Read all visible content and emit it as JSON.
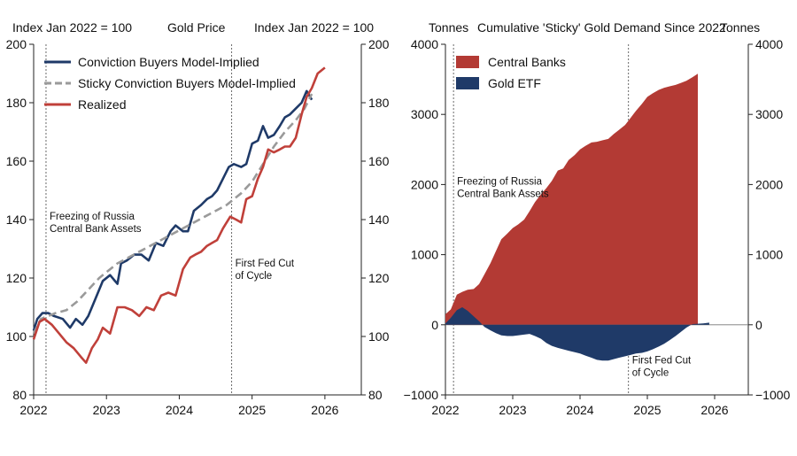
{
  "chart_data": [
    {
      "type": "line",
      "title": "Gold Price",
      "ylabel_left": "Index Jan 2022 = 100",
      "ylabel_right": "Index Jan 2022 = 100",
      "ylim": [
        80,
        200
      ],
      "yticks": [
        "80",
        "100",
        "120",
        "140",
        "160",
        "180",
        "200"
      ],
      "xlim": [
        2022,
        2026.5
      ],
      "xticks": [
        "2022",
        "2023",
        "2024",
        "2025",
        "2026"
      ],
      "legend_position": "top-left",
      "series": [
        {
          "name": "Conviction Buyers Model-Implied",
          "color": "#1f3a68",
          "style": "solid",
          "x": [
            2022.0,
            2022.05,
            2022.12,
            2022.2,
            2022.28,
            2022.4,
            2022.5,
            2022.58,
            2022.67,
            2022.75,
            2022.85,
            2022.95,
            2023.05,
            2023.15,
            2023.2,
            2023.28,
            2023.38,
            2023.48,
            2023.58,
            2023.68,
            2023.78,
            2023.88,
            2023.95,
            2024.05,
            2024.12,
            2024.2,
            2024.3,
            2024.38,
            2024.45,
            2024.52,
            2024.6,
            2024.68,
            2024.75,
            2024.85,
            2024.92,
            2025.0,
            2025.08,
            2025.15,
            2025.22,
            2025.3,
            2025.38,
            2025.45,
            2025.52,
            2025.6,
            2025.68,
            2025.75,
            2025.82
          ],
          "values": [
            102,
            106,
            108,
            108,
            107,
            106,
            103,
            106,
            104,
            107,
            113,
            119,
            121,
            118,
            125,
            126,
            128,
            128,
            126,
            132,
            131,
            136,
            138,
            136,
            136,
            143,
            145,
            147,
            148,
            150,
            154,
            158,
            159,
            158,
            159,
            166,
            167,
            172,
            168,
            169,
            172,
            175,
            176,
            178,
            180,
            184,
            181
          ]
        },
        {
          "name": "Sticky Conviction Buyers Model-Implied",
          "color": "#9a9a9a",
          "style": "dashed",
          "x": [
            2022.0,
            2022.1,
            2022.2,
            2022.3,
            2022.45,
            2022.6,
            2022.75,
            2022.9,
            2023.0,
            2023.15,
            2023.3,
            2023.45,
            2023.6,
            2023.75,
            2023.9,
            2024.05,
            2024.2,
            2024.35,
            2024.5,
            2024.65,
            2024.75,
            2024.85,
            2025.0,
            2025.15,
            2025.3,
            2025.45,
            2025.6,
            2025.72,
            2025.82
          ],
          "values": [
            101,
            106,
            107,
            108,
            109,
            112,
            116,
            120,
            122,
            125,
            127,
            129,
            131,
            133,
            135,
            137,
            139,
            141,
            143,
            145,
            147,
            149,
            153,
            159,
            165,
            170,
            174,
            178,
            183
          ]
        },
        {
          "name": "Realized",
          "color": "#c0403a",
          "style": "solid",
          "x": [
            2022.0,
            2022.08,
            2022.15,
            2022.25,
            2022.35,
            2022.45,
            2022.55,
            2022.65,
            2022.72,
            2022.8,
            2022.88,
            2022.95,
            2023.05,
            2023.15,
            2023.25,
            2023.35,
            2023.45,
            2023.55,
            2023.65,
            2023.75,
            2023.85,
            2023.95,
            2024.05,
            2024.15,
            2024.22,
            2024.3,
            2024.38,
            2024.45,
            2024.52,
            2024.6,
            2024.7,
            2024.78,
            2024.85,
            2024.92,
            2025.0,
            2025.08,
            2025.15,
            2025.22,
            2025.3,
            2025.38,
            2025.45,
            2025.52,
            2025.6,
            2025.68,
            2025.75,
            2025.82,
            2025.9,
            2026.0
          ],
          "values": [
            99,
            105,
            106,
            104,
            101,
            98,
            96,
            93,
            91,
            96,
            99,
            103,
            101,
            110,
            110,
            109,
            107,
            110,
            109,
            114,
            115,
            114,
            123,
            127,
            128,
            129,
            131,
            132,
            133,
            137,
            141,
            140,
            139,
            147,
            148,
            154,
            158,
            164,
            163,
            164,
            165,
            165,
            168,
            176,
            182,
            185,
            190,
            192
          ]
        }
      ],
      "annotations": [
        {
          "text": [
            "Freezing of Russia",
            "Central Bank Assets"
          ],
          "x": 2022.17,
          "y": 140
        },
        {
          "text": [
            "First Fed Cut",
            "of Cycle"
          ],
          "x": 2024.72,
          "y": 124
        }
      ],
      "event_lines_x": [
        2022.17,
        2024.72
      ]
    },
    {
      "type": "area",
      "title": "Cumulative 'Sticky' Gold Demand Since 2022",
      "ylabel_left": "Tonnes",
      "ylabel_right": "Tonnes",
      "ylim": [
        -1000,
        4000
      ],
      "yticks": [
        "−1000",
        "0",
        "1000",
        "2000",
        "3000",
        "4000"
      ],
      "xlim": [
        2022,
        2026.5
      ],
      "xticks": [
        "2022",
        "2023",
        "2024",
        "2025",
        "2026"
      ],
      "legend_position": "top-left",
      "series": [
        {
          "name": "Central Banks",
          "color": "#b33a34",
          "x": [
            2022.0,
            2022.08,
            2022.17,
            2022.25,
            2022.33,
            2022.42,
            2022.5,
            2022.58,
            2022.67,
            2022.75,
            2022.83,
            2022.92,
            2023.0,
            2023.08,
            2023.17,
            2023.25,
            2023.33,
            2023.42,
            2023.5,
            2023.58,
            2023.67,
            2023.75,
            2023.83,
            2023.92,
            2024.0,
            2024.08,
            2024.17,
            2024.25,
            2024.33,
            2024.42,
            2024.5,
            2024.58,
            2024.67,
            2024.75,
            2024.83,
            2024.92,
            2025.0,
            2025.08,
            2025.17,
            2025.25,
            2025.33,
            2025.42,
            2025.5,
            2025.58,
            2025.67,
            2025.75
          ],
          "values": [
            150,
            220,
            430,
            470,
            500,
            510,
            580,
            720,
            880,
            1050,
            1220,
            1300,
            1380,
            1430,
            1500,
            1620,
            1750,
            1860,
            1950,
            2050,
            2200,
            2230,
            2350,
            2420,
            2500,
            2550,
            2600,
            2610,
            2630,
            2650,
            2720,
            2780,
            2850,
            2950,
            3050,
            3150,
            3250,
            3300,
            3350,
            3380,
            3400,
            3420,
            3450,
            3480,
            3530,
            3580
          ]
        },
        {
          "name": "Gold ETF",
          "color": "#1f3a68",
          "x": [
            2022.0,
            2022.08,
            2022.17,
            2022.25,
            2022.33,
            2022.42,
            2022.5,
            2022.58,
            2022.67,
            2022.75,
            2022.83,
            2022.92,
            2023.0,
            2023.08,
            2023.17,
            2023.25,
            2023.33,
            2023.42,
            2023.5,
            2023.58,
            2023.67,
            2023.75,
            2023.83,
            2023.92,
            2024.0,
            2024.08,
            2024.17,
            2024.25,
            2024.33,
            2024.42,
            2024.5,
            2024.58,
            2024.67,
            2024.75,
            2024.83,
            2024.92,
            2025.0,
            2025.08,
            2025.17,
            2025.25,
            2025.33,
            2025.42,
            2025.5,
            2025.58,
            2025.67,
            2025.75,
            2025.83,
            2025.92
          ],
          "values": [
            20,
            100,
            210,
            250,
            200,
            120,
            50,
            -30,
            -80,
            -120,
            -150,
            -160,
            -160,
            -150,
            -140,
            -130,
            -160,
            -200,
            -260,
            -300,
            -330,
            -350,
            -370,
            -390,
            -410,
            -440,
            -470,
            -500,
            -510,
            -510,
            -490,
            -470,
            -450,
            -430,
            -410,
            -400,
            -380,
            -350,
            -310,
            -270,
            -220,
            -160,
            -100,
            -40,
            10,
            15,
            20,
            30
          ]
        }
      ],
      "annotations": [
        {
          "text": [
            "Freezing of Russia",
            "Central Bank Assets"
          ],
          "x": 2022.12,
          "y": 2000
        },
        {
          "text": [
            "First Fed Cut",
            "of Cycle"
          ],
          "x": 2024.72,
          "y": -550
        }
      ],
      "event_lines_x": [
        2022.12,
        2024.72
      ]
    }
  ]
}
